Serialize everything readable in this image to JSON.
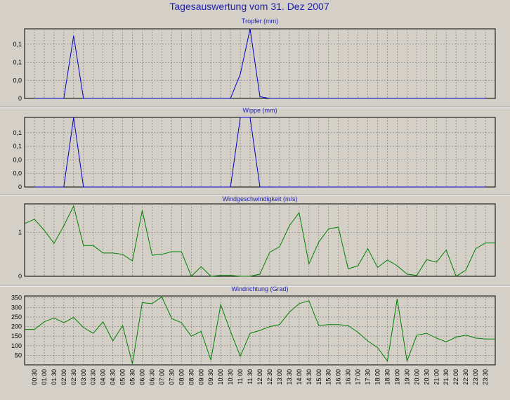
{
  "page_title": "Tagesauswertung vom 31. Dez 2007",
  "colors": {
    "background": "#d4d0c8",
    "title": "#1e1eb4",
    "grid": "#808080",
    "line_rain": "#0000c8",
    "line_wind": "#008000"
  },
  "x_tick_labels": [
    "00:30",
    "01:00",
    "01:30",
    "02:00",
    "02:30",
    "03:00",
    "03:30",
    "04:00",
    "04:30",
    "05:00",
    "05:30",
    "06:00",
    "06:30",
    "07:00",
    "07:30",
    "08:00",
    "08:30",
    "09:00",
    "09:30",
    "10:00",
    "10:30",
    "11:00",
    "11:30",
    "12:00",
    "12:30",
    "13:00",
    "13:30",
    "14:00",
    "14:30",
    "15:00",
    "15:30",
    "16:00",
    "16:30",
    "17:00",
    "17:30",
    "18:00",
    "18:30",
    "19:00",
    "19:30",
    "20:00",
    "20:30",
    "21:00",
    "21:30",
    "22:00",
    "22:30",
    "23:00",
    "23:30"
  ],
  "chart_data": [
    {
      "type": "line",
      "title": "Tropfer (mm)",
      "xlabel": "",
      "ylabel": "",
      "y_tick_labels": [
        "0,1",
        "0,1",
        "0,0",
        "0"
      ],
      "ylim": [
        0,
        0.2
      ],
      "grid": true,
      "x": [
        "00:30",
        "01:00",
        "01:30",
        "02:00",
        "02:30",
        "03:00",
        "03:30",
        "04:00",
        "04:30",
        "05:00",
        "05:30",
        "06:00",
        "06:30",
        "07:00",
        "07:30",
        "08:00",
        "08:30",
        "09:00",
        "09:30",
        "10:00",
        "10:30",
        "11:00",
        "11:30",
        "12:00",
        "12:30",
        "13:00",
        "13:30",
        "14:00",
        "14:30",
        "15:00",
        "15:30",
        "16:00",
        "16:30",
        "17:00",
        "17:30",
        "18:00",
        "18:30",
        "19:00",
        "19:30",
        "20:00",
        "20:30",
        "21:00",
        "21:30",
        "22:00",
        "22:30",
        "23:00",
        "23:30"
      ],
      "series": [
        {
          "values": [
            0,
            0,
            0,
            0,
            0.18,
            0,
            0,
            0,
            0,
            0,
            0,
            0,
            0,
            0,
            0,
            0,
            0,
            0,
            0,
            0,
            0,
            0.07,
            0.2,
            0.005,
            0,
            0,
            0,
            0,
            0,
            0,
            0,
            0,
            0,
            0,
            0,
            0,
            0,
            0,
            0,
            0,
            0,
            0,
            0,
            0,
            0,
            0,
            0
          ]
        }
      ]
    },
    {
      "type": "line",
      "title": "Wippe (mm)",
      "xlabel": "",
      "ylabel": "",
      "y_tick_labels": [
        "0,1",
        "0,1",
        "0,0",
        "0,0",
        "0"
      ],
      "ylim": [
        0,
        0.2
      ],
      "grid": true,
      "x": [
        "00:30",
        "01:00",
        "01:30",
        "02:00",
        "02:30",
        "03:00",
        "03:30",
        "04:00",
        "04:30",
        "05:00",
        "05:30",
        "06:00",
        "06:30",
        "07:00",
        "07:30",
        "08:00",
        "08:30",
        "09:00",
        "09:30",
        "10:00",
        "10:30",
        "11:00",
        "11:30",
        "12:00",
        "12:30",
        "13:00",
        "13:30",
        "14:00",
        "14:30",
        "15:00",
        "15:30",
        "16:00",
        "16:30",
        "17:00",
        "17:30",
        "18:00",
        "18:30",
        "19:00",
        "19:30",
        "20:00",
        "20:30",
        "21:00",
        "21:30",
        "22:00",
        "22:30",
        "23:00",
        "23:30"
      ],
      "series": [
        {
          "values": [
            0,
            0,
            0,
            0,
            0.2,
            0,
            0,
            0,
            0,
            0,
            0,
            0,
            0,
            0,
            0,
            0,
            0,
            0,
            0,
            0,
            0,
            0.2,
            0.2,
            0,
            0,
            0,
            0,
            0,
            0,
            0,
            0,
            0,
            0,
            0,
            0,
            0,
            0,
            0,
            0,
            0,
            0,
            0,
            0,
            0,
            0,
            0,
            0
          ]
        }
      ]
    },
    {
      "type": "line",
      "title": "Windgeschwindigkeit (m/s)",
      "xlabel": "",
      "ylabel": "",
      "y_tick_labels": [
        "1",
        "0"
      ],
      "ylim": [
        0,
        1.65
      ],
      "grid": true,
      "x": [
        "00:00",
        "00:30",
        "01:00",
        "01:30",
        "02:00",
        "02:30",
        "03:00",
        "03:30",
        "04:00",
        "04:30",
        "05:00",
        "05:30",
        "06:00",
        "06:30",
        "07:00",
        "07:30",
        "08:00",
        "08:30",
        "09:00",
        "09:30",
        "10:00",
        "10:30",
        "11:00",
        "11:30",
        "12:00",
        "12:30",
        "13:00",
        "13:30",
        "14:00",
        "14:30",
        "15:00",
        "15:30",
        "16:00",
        "16:30",
        "17:00",
        "17:30",
        "18:00",
        "18:30",
        "19:00",
        "19:30",
        "20:00",
        "20:30",
        "21:00",
        "21:30",
        "22:00",
        "22:30",
        "23:00",
        "23:30",
        "24:00"
      ],
      "series": [
        {
          "values": [
            1.2,
            1.3,
            1.05,
            0.75,
            1.15,
            1.6,
            0.7,
            0.7,
            0.53,
            0.53,
            0.5,
            0.35,
            1.5,
            0.48,
            0.5,
            0.56,
            0.56,
            0.0,
            0.22,
            0.0,
            0.02,
            0.02,
            0.0,
            0.0,
            0.05,
            0.55,
            0.67,
            1.15,
            1.45,
            0.28,
            0.78,
            1.08,
            1.12,
            0.17,
            0.24,
            0.63,
            0.2,
            0.37,
            0.24,
            0.05,
            0.02,
            0.38,
            0.32,
            0.6,
            0.0,
            0.14,
            0.63,
            0.76,
            0.76
          ]
        }
      ]
    },
    {
      "type": "line",
      "title": "Windrichtung (Grad)",
      "xlabel": "",
      "ylabel": "",
      "y_tick_labels": [
        "350",
        "300",
        "250",
        "200",
        "150",
        "100",
        "50"
      ],
      "ylim": [
        0,
        360
      ],
      "grid": true,
      "x": [
        "00:00",
        "00:30",
        "01:00",
        "01:30",
        "02:00",
        "02:30",
        "03:00",
        "03:30",
        "04:00",
        "04:30",
        "05:00",
        "05:30",
        "06:00",
        "06:30",
        "07:00",
        "07:30",
        "08:00",
        "08:30",
        "09:00",
        "09:30",
        "10:00",
        "10:30",
        "11:00",
        "11:30",
        "12:00",
        "12:30",
        "13:00",
        "13:30",
        "14:00",
        "14:30",
        "15:00",
        "15:30",
        "16:00",
        "16:30",
        "17:00",
        "17:30",
        "18:00",
        "18:30",
        "19:00",
        "19:30",
        "20:00",
        "20:30",
        "21:00",
        "21:30",
        "22:00",
        "22:30",
        "23:00",
        "23:30",
        "24:00"
      ],
      "series": [
        {
          "values": [
            185,
            185,
            225,
            245,
            220,
            248,
            195,
            165,
            225,
            125,
            205,
            5,
            325,
            320,
            355,
            242,
            220,
            150,
            175,
            25,
            315,
            175,
            45,
            165,
            180,
            200,
            210,
            275,
            320,
            335,
            205,
            210,
            210,
            205,
            170,
            125,
            90,
            20,
            345,
            20,
            155,
            165,
            140,
            120,
            145,
            155,
            140,
            135,
            135
          ]
        }
      ]
    }
  ]
}
